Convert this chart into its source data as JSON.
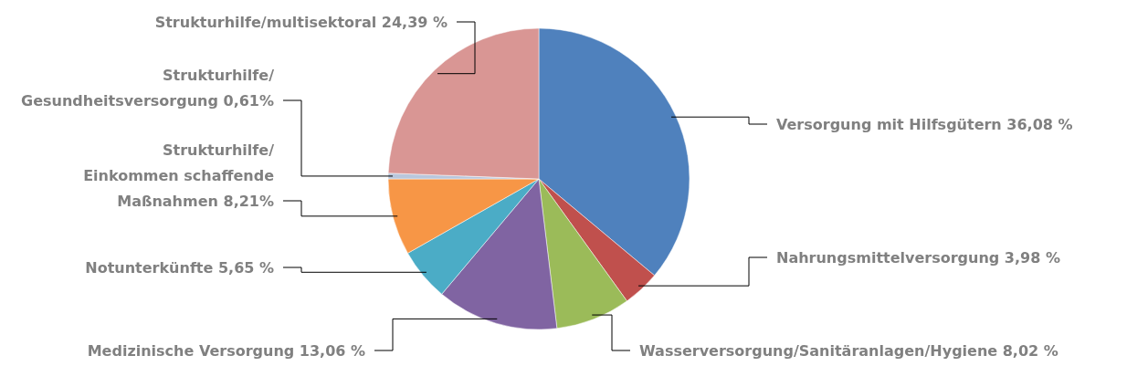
{
  "chart_data": {
    "type": "pie",
    "categories": [
      "Versorgung mit Hilfsgütern",
      "Nahrungsmittelversorgung",
      "Wasserversorgung/Sanitäranlagen/Hygiene",
      "Medizinische Versorgung",
      "Notunterkünfte",
      "Strukturhilfe/Einkommen schaffende Maßnahmen",
      "Strukturhilfe/Gesundheitsversorgung",
      "Strukturhilfe/multisektoral"
    ],
    "values": [
      36.08,
      3.98,
      8.02,
      13.06,
      5.65,
      8.21,
      0.61,
      24.39
    ],
    "value_labels": [
      "36,08 %",
      "3,98 %",
      "8,02 %",
      "13,06 %",
      "5,65 %",
      "8,21%",
      "0,61%",
      "24,39 %"
    ],
    "colors": [
      "#4f81bd",
      "#c0504d",
      "#9bbb59",
      "#8064a2",
      "#4bacc6",
      "#f79646",
      "#b9c7dc",
      "#d99694"
    ]
  }
}
